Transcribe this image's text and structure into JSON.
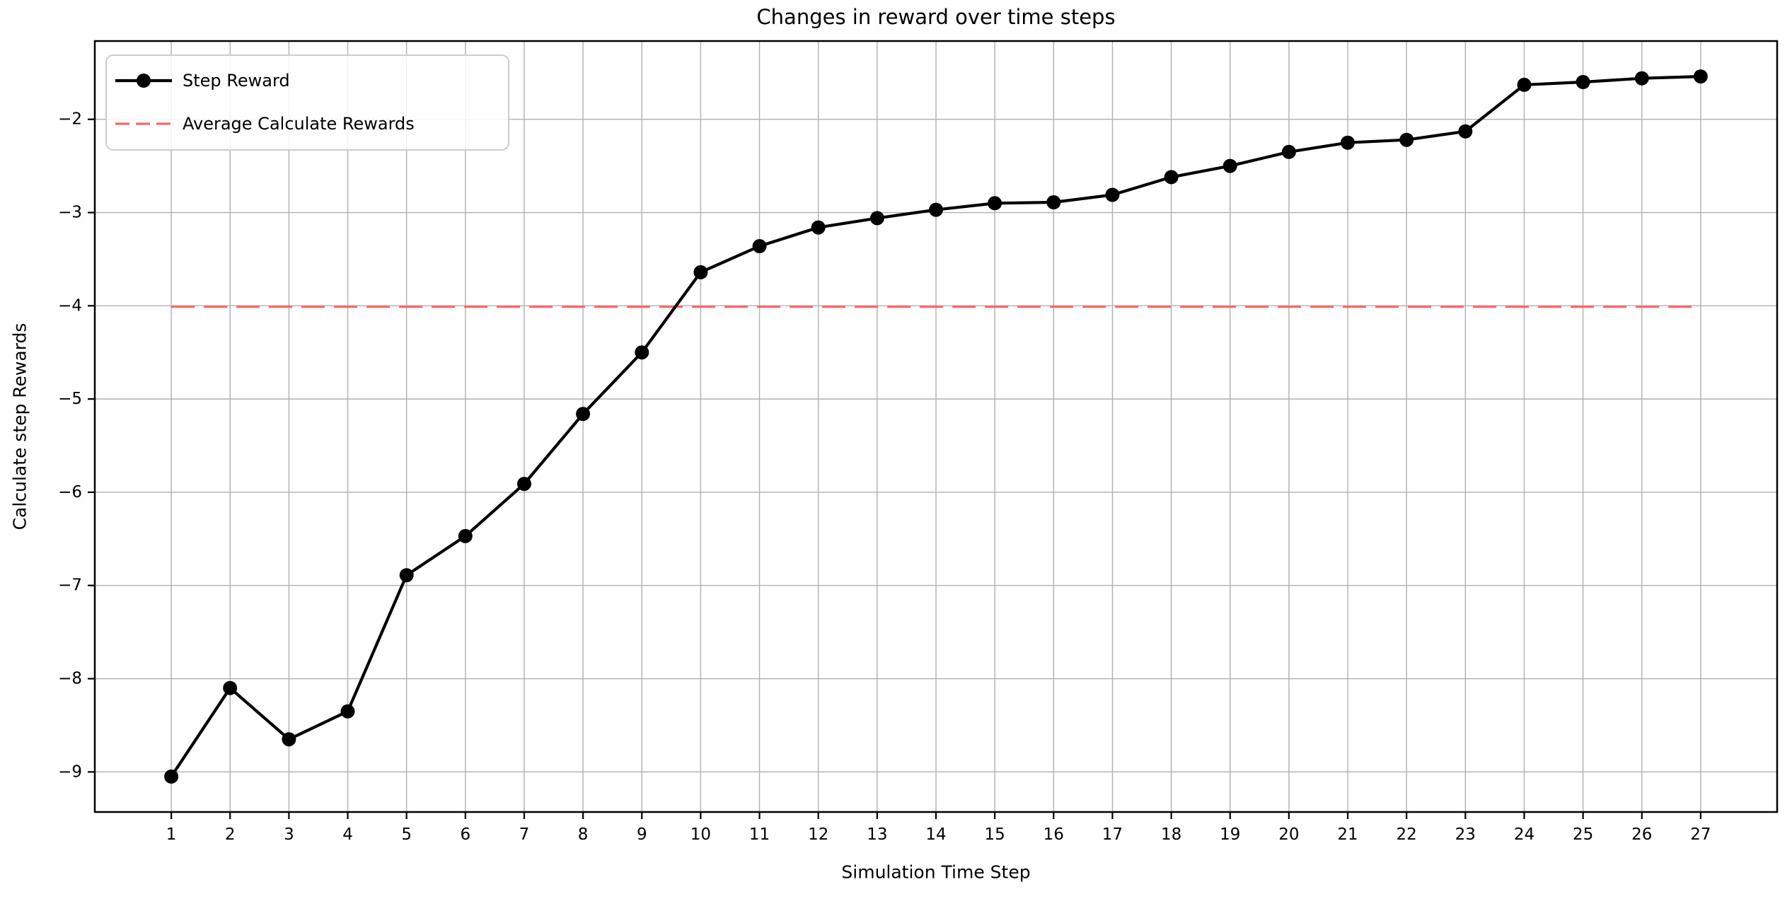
{
  "figure": {
    "background": "#ffffff"
  },
  "chart_data": {
    "type": "line",
    "title": "Changes in reward over time steps",
    "xlabel": "Simulation Time Step",
    "ylabel": "Calculate step Rewards",
    "x": [
      1,
      2,
      3,
      4,
      5,
      6,
      7,
      8,
      9,
      10,
      11,
      12,
      13,
      14,
      15,
      16,
      17,
      18,
      19,
      20,
      21,
      22,
      23,
      24,
      25,
      26,
      27
    ],
    "series": [
      {
        "name": "Step Reward",
        "type": "line",
        "marker": "circle",
        "color": "#000000",
        "values": [
          -9.05,
          -8.1,
          -8.65,
          -8.35,
          -6.89,
          -6.47,
          -5.91,
          -5.16,
          -4.5,
          -3.64,
          -3.36,
          -3.16,
          -3.06,
          -2.97,
          -2.9,
          -2.89,
          -2.81,
          -2.62,
          -2.5,
          -2.35,
          -2.25,
          -2.22,
          -2.13,
          -1.63,
          -1.6,
          -1.56,
          -1.54
        ]
      },
      {
        "name": "Average Calculate Rewards",
        "type": "hline-dashed",
        "color": "#ff6666",
        "value": -4.01,
        "x_start": 1,
        "x_end": 27
      }
    ],
    "xticks": [
      1,
      2,
      3,
      4,
      5,
      6,
      7,
      8,
      9,
      10,
      11,
      12,
      13,
      14,
      15,
      16,
      17,
      18,
      19,
      20,
      21,
      22,
      23,
      24,
      25,
      26,
      27
    ],
    "xticklabels": [
      "1",
      "2",
      "3",
      "4",
      "5",
      "6",
      "7",
      "8",
      "9",
      "10",
      "11",
      "12",
      "13",
      "14",
      "15",
      "16",
      "17",
      "18",
      "19",
      "20",
      "21",
      "22",
      "23",
      "24",
      "25",
      "26",
      "27"
    ],
    "yticks": [
      -9,
      -8,
      -7,
      -6,
      -5,
      -4,
      -3,
      -2
    ],
    "yticklabels": [
      "−9",
      "−8",
      "−7",
      "−6",
      "−5",
      "−4",
      "−3",
      "−2"
    ],
    "xlim": [
      -0.3,
      28.3
    ],
    "ylim": [
      -9.43,
      -1.16
    ],
    "grid": true,
    "grid_color": "#b0b0b0",
    "spine_color": "#000000",
    "legend_position": "upper left",
    "legend_border_color": "#cccccc"
  }
}
